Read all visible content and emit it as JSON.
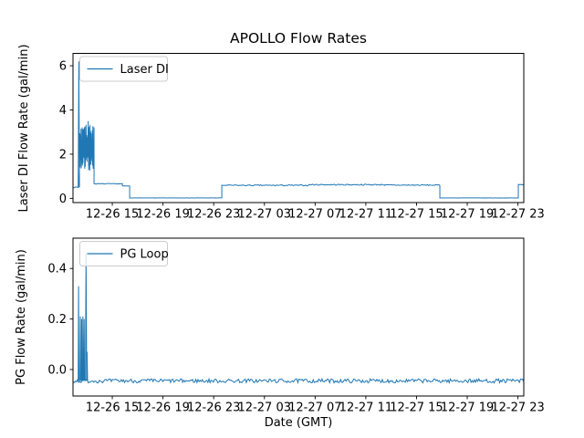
{
  "figure": {
    "background": "#ffffff",
    "axis_color": "#000000",
    "legend_border_color": "#cccccc",
    "legend_background": "rgba(255,255,255,0.8)"
  },
  "chart_data": [
    {
      "type": "line",
      "title": "APOLLO Flow Rates",
      "ylabel": "Laser DI Flow Rate (gal/min)",
      "legend": "Laser DI",
      "line_color": "#1f77b4",
      "xlim": [
        -0.1,
        35.46
      ],
      "ylim": [
        -0.19,
        6.56
      ],
      "grid": false,
      "legend_position": "upper left",
      "yticks": {
        "values": [
          0,
          2,
          4,
          6
        ],
        "labels": [
          "0",
          "2",
          "4",
          "6"
        ]
      },
      "xticks": {
        "hours": [
          3,
          7,
          11,
          15,
          19,
          23,
          27,
          31,
          35
        ],
        "labels": [
          "12-26 15",
          "12-26 19",
          "12-26 23",
          "12-27 03",
          "12-27 07",
          "12-27 11",
          "12-27 15",
          "12-27 19",
          "12-27 23"
        ]
      },
      "segments": [
        {
          "kind": "noisy",
          "t": [
            -0.1,
            0.33
          ],
          "v": 0.5,
          "amp": 0.02
        },
        {
          "kind": "oscillation",
          "t": [
            0.42,
            1.56
          ],
          "lo": 1.25,
          "hi": 3.4,
          "n": 52
        },
        {
          "kind": "noisy",
          "t": [
            1.56,
            3.79
          ],
          "v": 0.66,
          "amp": 0.015
        },
        {
          "kind": "noisy",
          "t": [
            3.79,
            4.37
          ],
          "v": 0.56,
          "amp": 0.01
        },
        {
          "kind": "noisy",
          "t": [
            4.37,
            11.64
          ],
          "v": 0.02,
          "amp": 0.004
        },
        {
          "kind": "noisy",
          "t": [
            11.64,
            18.5
          ],
          "v": 0.59,
          "amp": 0.025
        },
        {
          "kind": "noisy",
          "t": [
            18.5,
            24.5
          ],
          "v": 0.62,
          "amp": 0.025
        },
        {
          "kind": "noisy",
          "t": [
            24.5,
            28.84
          ],
          "v": 0.6,
          "amp": 0.025
        },
        {
          "kind": "noisy",
          "t": [
            28.84,
            35.03
          ],
          "v": 0.02,
          "amp": 0.004
        },
        {
          "kind": "noisy",
          "t": [
            35.03,
            35.46
          ],
          "v": 0.62,
          "amp": 0.02
        },
        {
          "kind": "spike",
          "t": 0.36,
          "peak": 6.2,
          "base": 0.5,
          "width": 0.05
        },
        {
          "kind": "spike",
          "t": 1.1,
          "peak": 3.5,
          "base": 2.0,
          "width": 0.04
        }
      ]
    },
    {
      "type": "line",
      "title": "",
      "ylabel": "PG Flow Rate (gal/min)",
      "xlabel": "Date (GMT)",
      "legend": "PG Loop",
      "line_color": "#1f77b4",
      "xlim": [
        -0.1,
        35.46
      ],
      "ylim": [
        -0.105,
        0.52
      ],
      "grid": false,
      "legend_position": "upper left",
      "yticks": {
        "values": [
          0,
          0.2,
          0.4
        ],
        "labels": [
          "0.0",
          "0.2",
          "0.4"
        ]
      },
      "xticks": {
        "hours": [
          3,
          7,
          11,
          15,
          19,
          23,
          27,
          31,
          35
        ],
        "labels": [
          "12-26 15",
          "12-26 19",
          "12-26 23",
          "12-27 03",
          "12-27 07",
          "12-27 11",
          "12-27 15",
          "12-27 19",
          "12-27 23"
        ]
      },
      "segments": [
        {
          "kind": "noisy",
          "t": [
            -0.1,
            35.46
          ],
          "v": -0.045,
          "amp": 0.008
        },
        {
          "kind": "spike",
          "t": 0.34,
          "peak": 0.33,
          "base": -0.045,
          "width": 0.03
        },
        {
          "kind": "spike",
          "t": 0.48,
          "peak": 0.21,
          "base": -0.045,
          "width": 0.03
        },
        {
          "kind": "spike",
          "t": 0.58,
          "peak": 0.2,
          "base": -0.045,
          "width": 0.03
        },
        {
          "kind": "spike",
          "t": 0.68,
          "peak": 0.21,
          "base": -0.045,
          "width": 0.03
        },
        {
          "kind": "spike",
          "t": 0.78,
          "peak": 0.2,
          "base": -0.045,
          "width": 0.03
        },
        {
          "kind": "spike",
          "t": 0.93,
          "peak": 0.46,
          "base": -0.045,
          "width": 0.05
        },
        {
          "kind": "spike",
          "t": 1.01,
          "peak": 0.07,
          "base": -0.045,
          "width": 0.04
        }
      ]
    }
  ]
}
